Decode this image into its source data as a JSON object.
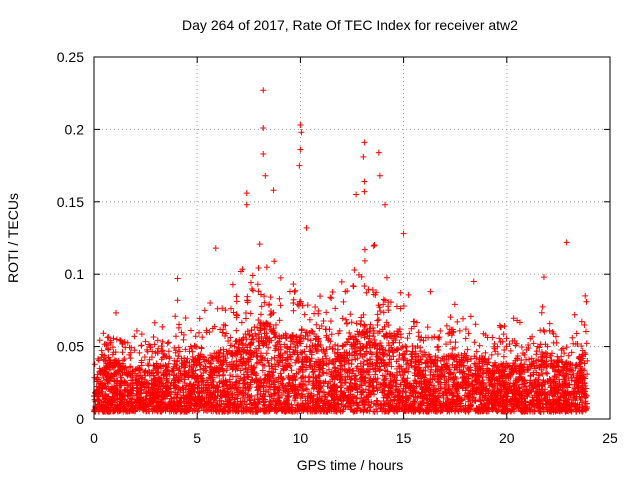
{
  "chart_data": {
    "type": "scatter",
    "title": "Day 264 of 2017, Rate Of TEC Index for receiver atw2",
    "xlabel": "GPS time / hours",
    "ylabel": "ROTI / TECUs",
    "xlim": [
      0,
      25
    ],
    "ylim": [
      0,
      0.25
    ],
    "x_ticks": [
      "0",
      "5",
      "10",
      "15",
      "20",
      "25"
    ],
    "x_tick_values": [
      0,
      5,
      10,
      15,
      20,
      25
    ],
    "y_ticks": [
      "0",
      "0.05",
      "0.1",
      "0.15",
      "0.2",
      "0.25"
    ],
    "y_tick_values": [
      0,
      0.05,
      0.1,
      0.15,
      0.2,
      0.25
    ],
    "grid": true,
    "marker": "+",
    "series": [
      {
        "color": "#ff0000",
        "x_range": [
          0,
          23.9
        ],
        "typical_range": [
          0.005,
          0.05
        ],
        "notable_points": [
          {
            "x": 4.05,
            "y": 0.097
          },
          {
            "x": 4.05,
            "y": 0.082
          },
          {
            "x": 5.9,
            "y": 0.118
          },
          {
            "x": 7.4,
            "y": 0.156
          },
          {
            "x": 7.4,
            "y": 0.148
          },
          {
            "x": 8.2,
            "y": 0.227
          },
          {
            "x": 8.2,
            "y": 0.201
          },
          {
            "x": 8.2,
            "y": 0.183
          },
          {
            "x": 8.3,
            "y": 0.168
          },
          {
            "x": 8.7,
            "y": 0.158
          },
          {
            "x": 10.0,
            "y": 0.203
          },
          {
            "x": 10.05,
            "y": 0.198
          },
          {
            "x": 10.0,
            "y": 0.186
          },
          {
            "x": 9.95,
            "y": 0.175
          },
          {
            "x": 10.3,
            "y": 0.132
          },
          {
            "x": 13.1,
            "y": 0.191
          },
          {
            "x": 13.05,
            "y": 0.181
          },
          {
            "x": 13.1,
            "y": 0.164
          },
          {
            "x": 13.1,
            "y": 0.157
          },
          {
            "x": 12.7,
            "y": 0.155
          },
          {
            "x": 13.8,
            "y": 0.184
          },
          {
            "x": 13.85,
            "y": 0.168
          },
          {
            "x": 14.1,
            "y": 0.148
          },
          {
            "x": 15.0,
            "y": 0.128
          },
          {
            "x": 16.3,
            "y": 0.088
          },
          {
            "x": 18.4,
            "y": 0.095
          },
          {
            "x": 20.5,
            "y": 0.068
          },
          {
            "x": 21.8,
            "y": 0.098
          },
          {
            "x": 22.9,
            "y": 0.122
          },
          {
            "x": 23.8,
            "y": 0.085
          }
        ]
      }
    ]
  }
}
